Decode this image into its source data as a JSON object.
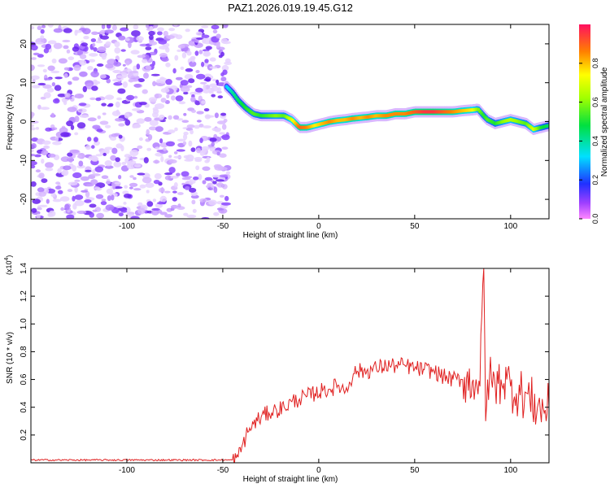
{
  "title": "PAZ1.2026.019.19.45.G12",
  "chart_data": [
    {
      "type": "heatmap",
      "name": "spectrogram",
      "xlabel": "Height of straight line (km)",
      "ylabel": "Frequency (Hz)",
      "xlim": [
        -150,
        120
      ],
      "ylim": [
        -25,
        25
      ],
      "xticks": [
        -100,
        -50,
        0,
        50,
        100
      ],
      "yticks": [
        -20,
        -10,
        0,
        10,
        20
      ],
      "ridge": {
        "x": [
          -48,
          -45,
          -42,
          -38,
          -34,
          -30,
          -26,
          -22,
          -18,
          -14,
          -10,
          -6,
          -2,
          2,
          6,
          10,
          14,
          18,
          22,
          26,
          30,
          35,
          40,
          45,
          50,
          55,
          60,
          65,
          70,
          75,
          80,
          83,
          86,
          88,
          92,
          96,
          100,
          104,
          108,
          112,
          116,
          120
        ],
        "f": [
          9,
          7.5,
          5.5,
          3.5,
          2,
          1.5,
          1.5,
          1.5,
          1.5,
          0.5,
          -1.5,
          -1.5,
          -1,
          -0.5,
          0,
          0.3,
          0.5,
          0.8,
          1,
          1.2,
          1.5,
          1.5,
          2,
          2,
          2.5,
          2.5,
          2.5,
          2.5,
          2.5,
          2.8,
          3,
          3.2,
          1.5,
          0.5,
          -0.5,
          0,
          0.5,
          0,
          -0.5,
          -2,
          -1.5,
          -1
        ],
        "amplitude": [
          0.3,
          0.4,
          0.45,
          0.5,
          0.55,
          0.5,
          0.55,
          0.6,
          0.55,
          0.7,
          0.9,
          0.85,
          0.75,
          0.8,
          0.85,
          0.8,
          0.8,
          0.85,
          0.8,
          0.85,
          0.8,
          0.85,
          0.85,
          0.85,
          0.9,
          0.95,
          0.95,
          0.9,
          0.85,
          0.8,
          0.75,
          0.6,
          0.5,
          0.55,
          0.5,
          0.6,
          0.65,
          0.6,
          0.55,
          0.7,
          0.5,
          0.45
        ]
      },
      "noise_region_x": [
        -150,
        -47
      ],
      "colorbar": {
        "label": "Normalized spectral amplitude",
        "range": [
          0,
          1
        ],
        "ticks": [
          "0.0",
          "0.2",
          "0.4",
          "0.6",
          "0.8"
        ]
      }
    },
    {
      "type": "line",
      "name": "snr",
      "xlabel": "Height of straight line (km)",
      "ylabel": "SNR (10 * v/v)",
      "scale_label": "(x10",
      "scale_exponent": "4",
      "xlim": [
        -150,
        120
      ],
      "ylim": [
        0,
        1.4
      ],
      "xticks": [
        -100,
        -50,
        0,
        50,
        100
      ],
      "yticks": [
        "0.2",
        "0.4",
        "0.6",
        "0.8",
        "1.0",
        "1.2",
        "1.4"
      ],
      "color": "#e02020",
      "x": [
        -150,
        -140,
        -120,
        -100,
        -80,
        -60,
        -48,
        -45,
        -42,
        -40,
        -37,
        -34,
        -30,
        -26,
        -22,
        -18,
        -14,
        -10,
        -6,
        -2,
        2,
        6,
        10,
        14,
        16,
        18,
        20,
        25,
        30,
        35,
        40,
        45,
        50,
        55,
        60,
        65,
        70,
        75,
        80,
        82,
        84,
        86,
        87,
        88,
        90,
        92,
        95,
        98,
        100,
        103,
        106,
        110,
        114,
        118,
        120
      ],
      "y": [
        0.02,
        0.02,
        0.02,
        0.02,
        0.02,
        0.02,
        0.02,
        0.02,
        0.04,
        0.12,
        0.22,
        0.28,
        0.33,
        0.36,
        0.38,
        0.4,
        0.44,
        0.46,
        0.48,
        0.5,
        0.52,
        0.53,
        0.56,
        0.52,
        0.58,
        0.64,
        0.66,
        0.66,
        0.68,
        0.7,
        0.7,
        0.7,
        0.68,
        0.67,
        0.66,
        0.62,
        0.6,
        0.6,
        0.58,
        0.6,
        0.55,
        1.4,
        0.3,
        0.6,
        0.6,
        0.55,
        0.6,
        0.6,
        0.55,
        0.5,
        0.5,
        0.46,
        0.4,
        0.38,
        0.4
      ]
    }
  ]
}
